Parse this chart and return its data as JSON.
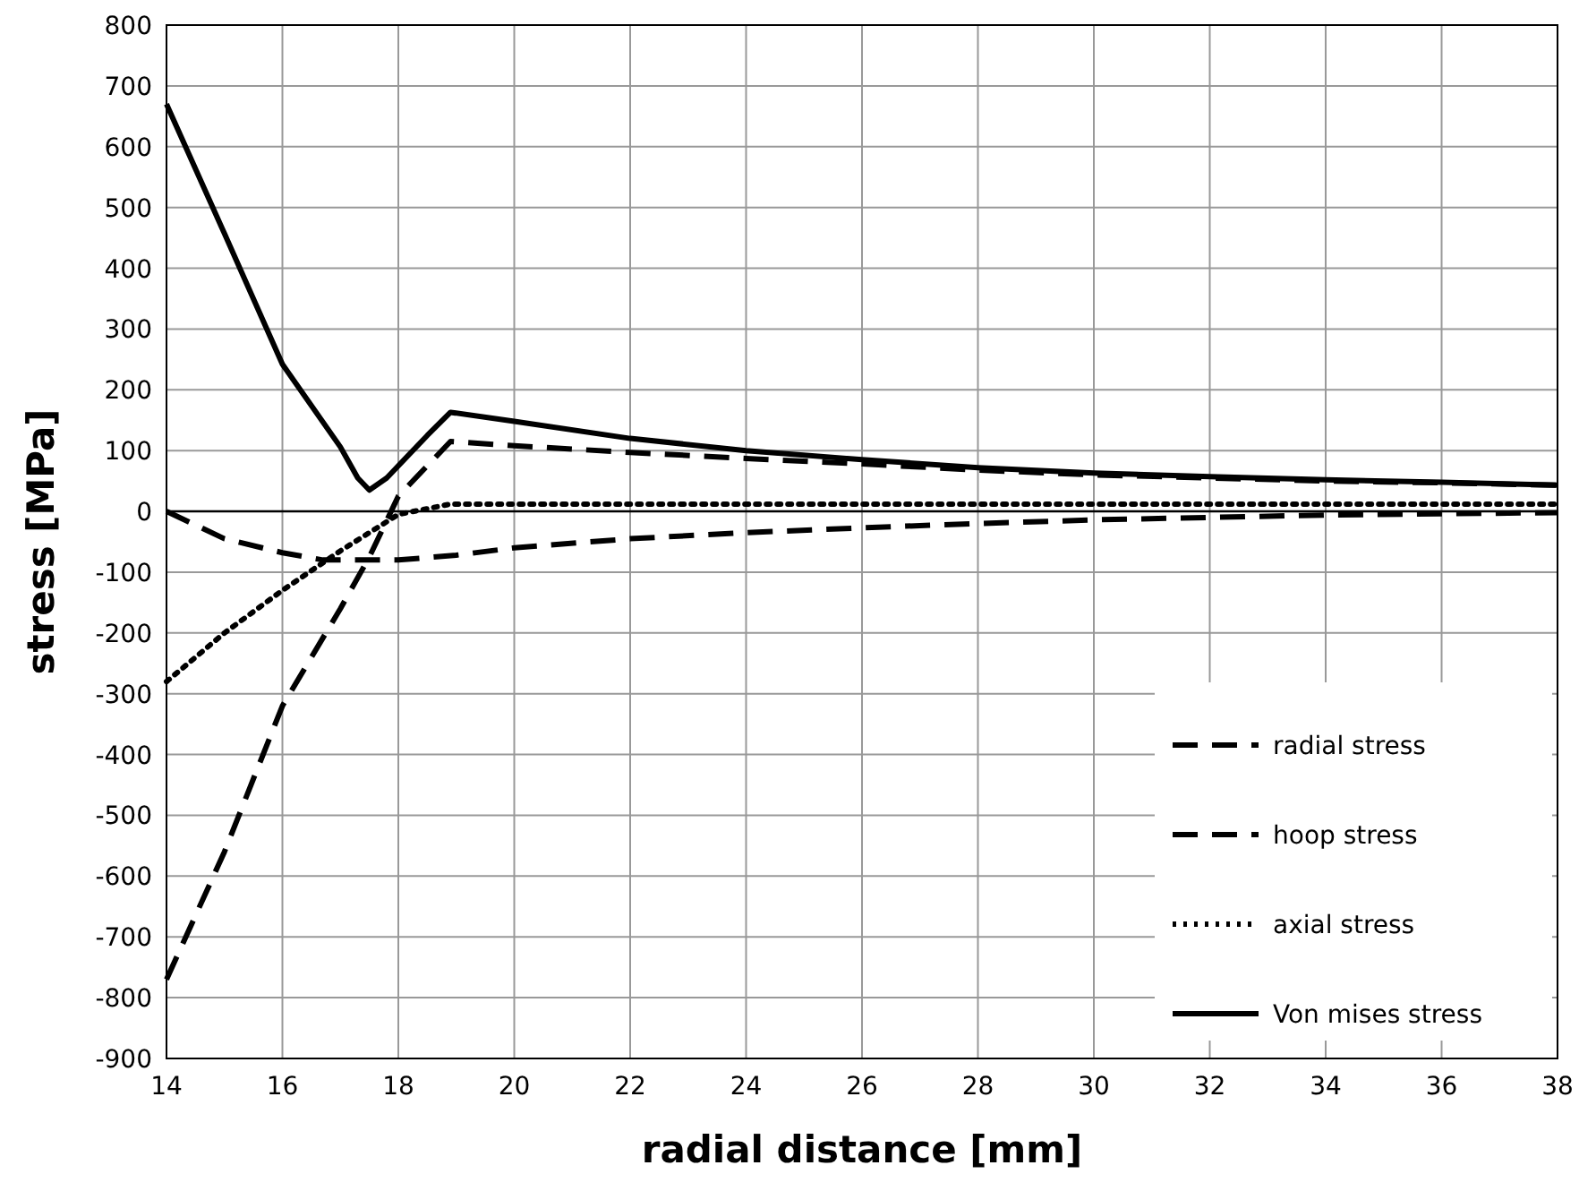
{
  "chart_data": {
    "type": "line",
    "xlabel": "radial distance [mm]",
    "ylabel": "stress [MPa]",
    "xlim": [
      14,
      38
    ],
    "xticks": [
      14,
      16,
      18,
      20,
      22,
      24,
      26,
      28,
      30,
      32,
      34,
      36,
      38
    ],
    "ylim": [
      -900,
      800
    ],
    "yticks": [
      -900,
      -800,
      -700,
      -600,
      -500,
      -400,
      -300,
      -200,
      -100,
      0,
      100,
      200,
      300,
      400,
      500,
      600,
      700,
      800
    ],
    "grid": true,
    "legend": "bottom right",
    "marker": "none",
    "series": [
      {
        "name": "radial stress",
        "color": "#000000",
        "line_style": "dashed",
        "x": [
          14,
          15,
          16,
          16.7,
          17.5,
          18,
          19,
          20,
          22,
          24,
          26,
          28,
          30,
          32,
          34,
          36,
          38
        ],
        "values": [
          0,
          -45,
          -68,
          -80,
          -80,
          -80,
          -72,
          -60,
          -45,
          -35,
          -27,
          -20,
          -14,
          -10,
          -6,
          -4,
          -2
        ]
      },
      {
        "name": "hoop stress",
        "color": "#000000",
        "line_style": "dashed",
        "x": [
          14,
          15,
          16,
          17,
          17.5,
          18,
          18.9,
          20,
          22,
          24,
          26,
          28,
          30,
          32,
          34,
          36,
          38
        ],
        "values": [
          -770,
          -560,
          -320,
          -160,
          -75,
          25,
          115,
          108,
          97,
          87,
          78,
          68,
          60,
          55,
          50,
          47,
          43
        ]
      },
      {
        "name": "axial stress",
        "color": "#000000",
        "line_style": "dotted",
        "x": [
          14,
          15,
          16,
          17,
          17.5,
          18,
          18.9,
          20,
          24,
          28,
          32,
          38
        ],
        "values": [
          -280,
          -200,
          -130,
          -65,
          -35,
          -5,
          12,
          12,
          12,
          12,
          12,
          12
        ]
      },
      {
        "name": "Von mises stress",
        "color": "#000000",
        "line_style": "solid",
        "x": [
          14,
          15,
          16,
          17,
          17.3,
          17.5,
          17.8,
          18.5,
          18.9,
          20,
          22,
          24,
          26,
          28,
          30,
          32,
          34,
          36,
          38
        ],
        "values": [
          670,
          457,
          242,
          106,
          55,
          35,
          55,
          125,
          163,
          148,
          120,
          100,
          85,
          72,
          63,
          57,
          52,
          48,
          43
        ]
      }
    ]
  }
}
